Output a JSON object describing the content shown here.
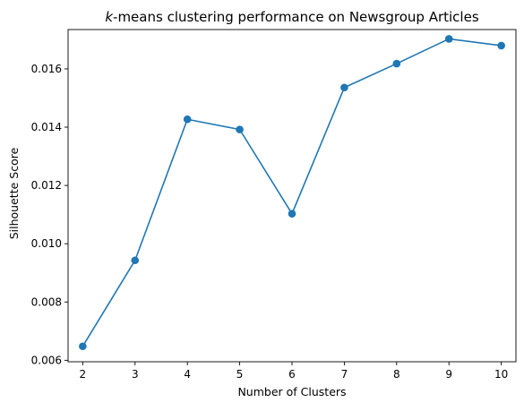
{
  "chart_data": {
    "type": "line",
    "title_prefix": "k",
    "title_rest": "-means clustering performance on Newsgroup Articles",
    "xlabel": "Number of Clusters",
    "ylabel": "Silhouette Score",
    "x": [
      2,
      3,
      4,
      5,
      6,
      7,
      8,
      9,
      10
    ],
    "series": [
      {
        "values": [
          0.00648,
          0.00943,
          0.01427,
          0.01392,
          0.01103,
          0.01536,
          0.01618,
          0.01703,
          0.0168
        ]
      }
    ],
    "xlim": [
      1.72,
      10.28
    ],
    "ylim": [
      0.00595,
      0.01735
    ],
    "x_ticks": [
      "2",
      "3",
      "4",
      "5",
      "6",
      "7",
      "8",
      "9",
      "10"
    ],
    "y_ticks": [
      "0.006",
      "0.008",
      "0.010",
      "0.012",
      "0.014",
      "0.016"
    ],
    "grid": false,
    "line_color": "#1f77b4",
    "marker": "circle"
  }
}
